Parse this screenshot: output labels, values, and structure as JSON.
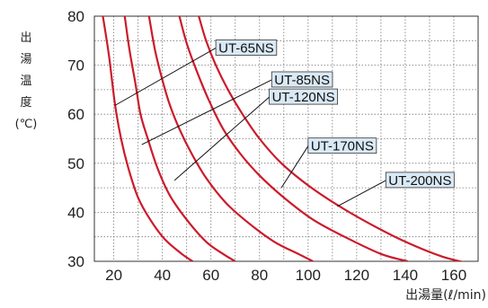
{
  "chart_data": {
    "type": "line",
    "title": "",
    "ylabel_chars": [
      "出",
      "湯",
      "温",
      "度",
      "(℃)"
    ],
    "xlabel": "出湯量(ℓ/min)",
    "xlim": [
      12,
      170
    ],
    "ylim": [
      30,
      80
    ],
    "xticks": [
      20,
      40,
      60,
      80,
      100,
      120,
      140,
      160
    ],
    "yticks": [
      30,
      40,
      50,
      60,
      70,
      80
    ],
    "grid": true,
    "line_color": "#cc1a2b",
    "label_bg": "#d9e9f5",
    "series": [
      {
        "name": "UT-65NS",
        "points": [
          [
            15.5,
            80
          ],
          [
            18,
            72
          ],
          [
            20.5,
            62
          ],
          [
            23,
            55
          ],
          [
            26,
            49
          ],
          [
            30,
            43
          ],
          [
            35,
            38.5
          ],
          [
            41,
            34.5
          ],
          [
            48,
            31.5
          ],
          [
            52.5,
            30
          ]
        ],
        "label_anchor": [
          20.5,
          61.8
        ]
      },
      {
        "name": "UT-85NS",
        "points": [
          [
            24.5,
            80
          ],
          [
            26.5,
            73
          ],
          [
            29,
            66
          ],
          [
            31,
            60
          ],
          [
            34,
            55
          ],
          [
            38,
            49
          ],
          [
            43,
            43.5
          ],
          [
            50,
            38.5
          ],
          [
            58,
            34
          ],
          [
            65,
            31.5
          ],
          [
            70,
            30
          ]
        ],
        "label_anchor": [
          31.5,
          53.8
        ]
      },
      {
        "name": "UT-120NS",
        "points": [
          [
            34.5,
            80
          ],
          [
            37,
            73
          ],
          [
            40,
            67
          ],
          [
            43,
            62
          ],
          [
            47,
            57
          ],
          [
            52,
            52
          ],
          [
            58,
            47
          ],
          [
            66,
            42
          ],
          [
            75,
            38
          ],
          [
            86,
            34
          ],
          [
            96,
            31.5
          ],
          [
            102,
            30
          ]
        ],
        "label_anchor": [
          45,
          46.5
        ]
      },
      {
        "name": "UT-170NS",
        "points": [
          [
            47,
            80
          ],
          [
            50,
            74.5
          ],
          [
            54,
            69
          ],
          [
            59,
            63
          ],
          [
            65,
            57
          ],
          [
            72,
            52
          ],
          [
            80,
            47.5
          ],
          [
            90,
            43
          ],
          [
            102,
            38.5
          ],
          [
            115,
            35
          ],
          [
            130,
            31.5
          ],
          [
            141,
            30
          ]
        ],
        "label_anchor": [
          89,
          45
        ]
      },
      {
        "name": "UT-200NS",
        "points": [
          [
            55,
            80
          ],
          [
            58,
            75
          ],
          [
            62,
            70
          ],
          [
            67,
            65
          ],
          [
            73,
            60
          ],
          [
            80,
            55
          ],
          [
            89,
            50
          ],
          [
            100,
            45.5
          ],
          [
            112,
            41.5
          ],
          [
            126,
            37.5
          ],
          [
            140,
            34
          ],
          [
            155,
            31
          ],
          [
            167,
            29.5
          ]
        ],
        "label_anchor": [
          112,
          41.2
        ]
      }
    ],
    "label_boxes": [
      {
        "x": 62,
        "y": 73.5
      },
      {
        "x": 85,
        "y": 67
      },
      {
        "x": 84,
        "y": 63.5
      },
      {
        "x": 100,
        "y": 53.5
      },
      {
        "x": 132,
        "y": 46.5
      }
    ]
  }
}
